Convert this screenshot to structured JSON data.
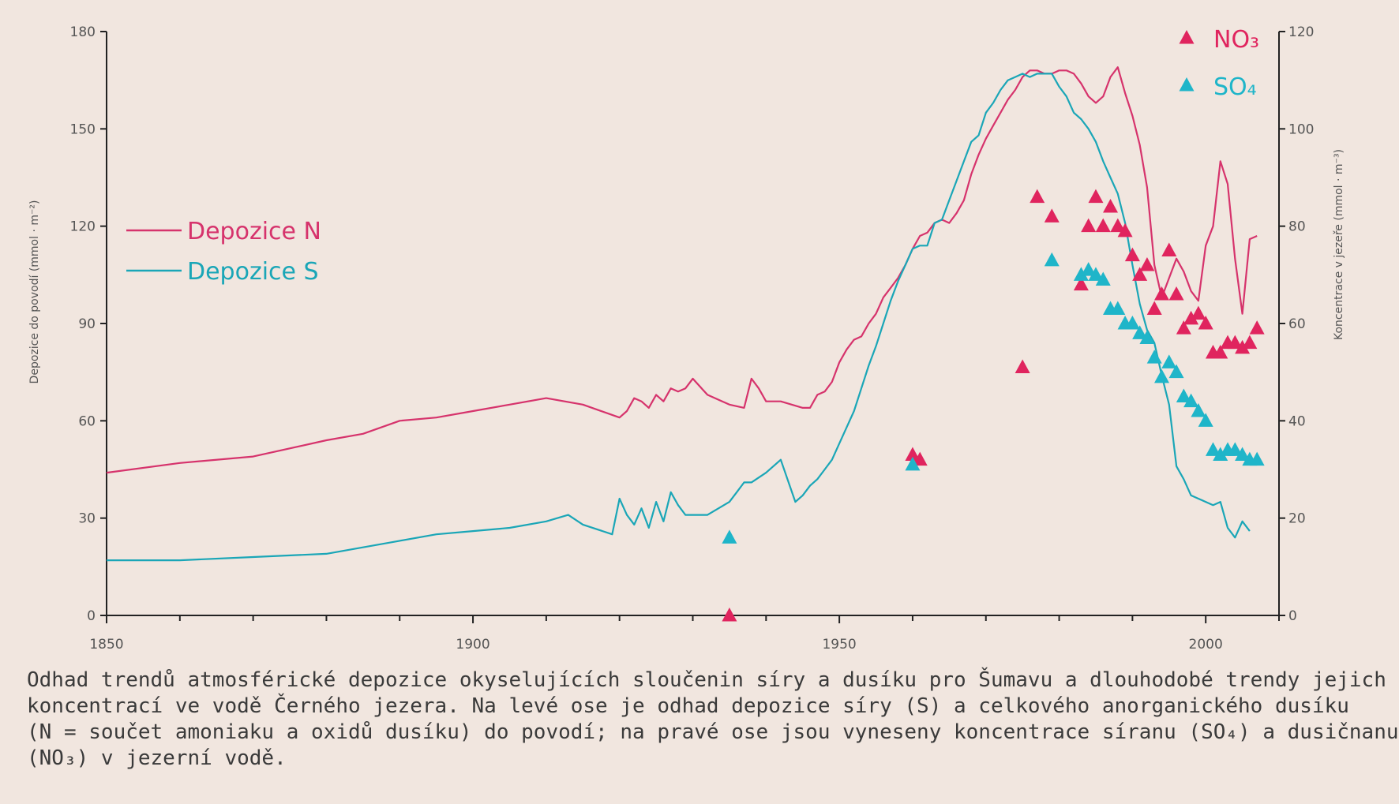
{
  "chart_data": {
    "type": "line",
    "xlim": [
      1850,
      2010
    ],
    "x_ticks": [
      1850,
      1900,
      1950,
      2000
    ],
    "y_left": {
      "label": "Depozice do povodí (mmol · m⁻²)",
      "lim": [
        0,
        180
      ],
      "ticks": [
        0,
        30,
        60,
        90,
        120,
        150,
        180
      ]
    },
    "y_right": {
      "label": "Koncentrace v jezeře (mmol · m⁻³)",
      "lim": [
        0,
        120
      ],
      "ticks": [
        0,
        20,
        40,
        60,
        80,
        100,
        120
      ]
    },
    "legend_lines": [
      {
        "name": "Depozice N",
        "color": "#d6336c"
      },
      {
        "name": "Depozice S",
        "color": "#1aa6b7"
      }
    ],
    "legend_markers": [
      {
        "name": "NO₃",
        "color": "#e0245e"
      },
      {
        "name": "SO₄",
        "color": "#1fb5c9"
      }
    ],
    "series": [
      {
        "name": "Depozice N",
        "axis": "left",
        "color": "#d6336c",
        "x": [
          1850,
          1860,
          1870,
          1880,
          1885,
          1890,
          1895,
          1900,
          1905,
          1910,
          1915,
          1920,
          1921,
          1922,
          1923,
          1924,
          1925,
          1926,
          1927,
          1928,
          1929,
          1930,
          1932,
          1935,
          1937,
          1938,
          1939,
          1940,
          1942,
          1945,
          1946,
          1947,
          1948,
          1949,
          1950,
          1951,
          1952,
          1953,
          1954,
          1955,
          1956,
          1957,
          1958,
          1959,
          1960,
          1961,
          1962,
          1963,
          1964,
          1965,
          1966,
          1967,
          1968,
          1969,
          1970,
          1971,
          1972,
          1973,
          1974,
          1975,
          1976,
          1977,
          1978,
          1979,
          1980,
          1981,
          1982,
          1983,
          1984,
          1985,
          1986,
          1987,
          1988,
          1989,
          1990,
          1991,
          1992,
          1993,
          1994,
          1995,
          1996,
          1997,
          1998,
          1999,
          2000,
          2001,
          2002,
          2003,
          2004,
          2005,
          2006,
          2007
        ],
        "y": [
          44,
          47,
          49,
          54,
          56,
          60,
          61,
          63,
          65,
          67,
          65,
          61,
          63,
          67,
          66,
          64,
          68,
          66,
          70,
          69,
          70,
          73,
          68,
          65,
          64,
          73,
          70,
          66,
          66,
          64,
          64,
          68,
          69,
          72,
          78,
          82,
          85,
          86,
          90,
          93,
          98,
          101,
          104,
          108,
          113,
          117,
          118,
          121,
          122,
          121,
          124,
          128,
          136,
          142,
          147,
          151,
          155,
          159,
          162,
          166,
          168,
          168,
          167,
          167,
          168,
          168,
          167,
          164,
          160,
          158,
          160,
          166,
          169,
          161,
          154,
          145,
          132,
          108,
          98,
          104,
          110,
          106,
          100,
          97,
          114,
          120,
          140,
          133,
          110,
          93,
          116,
          117
        ]
      },
      {
        "name": "Depozice S",
        "axis": "left",
        "color": "#1aa6b7",
        "x": [
          1850,
          1860,
          1870,
          1880,
          1885,
          1890,
          1895,
          1900,
          1905,
          1910,
          1913,
          1915,
          1919,
          1920,
          1921,
          1922,
          1923,
          1924,
          1925,
          1926,
          1927,
          1928,
          1929,
          1930,
          1932,
          1935,
          1936,
          1937,
          1938,
          1940,
          1942,
          1944,
          1945,
          1946,
          1947,
          1948,
          1949,
          1950,
          1951,
          1952,
          1953,
          1954,
          1955,
          1956,
          1957,
          1958,
          1959,
          1960,
          1961,
          1962,
          1963,
          1964,
          1965,
          1966,
          1967,
          1968,
          1969,
          1970,
          1971,
          1972,
          1973,
          1974,
          1975,
          1976,
          1977,
          1978,
          1979,
          1980,
          1981,
          1982,
          1983,
          1984,
          1985,
          1986,
          1987,
          1988,
          1989,
          1990,
          1991,
          1992,
          1993,
          1994,
          1995,
          1996,
          1997,
          1998,
          1999,
          2000,
          2001,
          2002,
          2003,
          2004,
          2005,
          2006
        ],
        "y": [
          17,
          17,
          18,
          19,
          21,
          23,
          25,
          26,
          27,
          29,
          31,
          28,
          25,
          36,
          31,
          28,
          33,
          27,
          35,
          29,
          38,
          34,
          31,
          31,
          31,
          35,
          38,
          41,
          41,
          44,
          48,
          35,
          37,
          40,
          42,
          45,
          48,
          53,
          58,
          63,
          70,
          77,
          83,
          90,
          97,
          103,
          108,
          113,
          114,
          114,
          121,
          122,
          128,
          134,
          140,
          146,
          148,
          155,
          158,
          162,
          165,
          166,
          167,
          166,
          167,
          167,
          167,
          163,
          160,
          155,
          153,
          150,
          146,
          140,
          135,
          130,
          121,
          108,
          96,
          88,
          84,
          74,
          65,
          46,
          42,
          37,
          36,
          35,
          34,
          35,
          27,
          24,
          29,
          26
        ]
      }
    ],
    "markers": [
      {
        "name": "NO₃",
        "axis": "right",
        "color": "#e0245e",
        "x": [
          1935,
          1960,
          1961,
          1975,
          1977,
          1979,
          1983,
          1984,
          1985,
          1986,
          1987,
          1988,
          1989,
          1990,
          1991,
          1992,
          1993,
          1994,
          1995,
          1996,
          1997,
          1998,
          1999,
          2000,
          2001,
          2002,
          2003,
          2004,
          2005,
          2006,
          2007
        ],
        "y": [
          0,
          33,
          32,
          51,
          86,
          82,
          68,
          80,
          86,
          80,
          84,
          80,
          79,
          74,
          70,
          72,
          63,
          66,
          75,
          66,
          59,
          61,
          62,
          60,
          54,
          54,
          56,
          56,
          55,
          56,
          59
        ]
      },
      {
        "name": "SO₄",
        "axis": "right",
        "color": "#1fb5c9",
        "x": [
          1935,
          1960,
          1979,
          1983,
          1984,
          1985,
          1986,
          1987,
          1988,
          1989,
          1990,
          1991,
          1992,
          1993,
          1994,
          1995,
          1996,
          1997,
          1998,
          1999,
          2000,
          2001,
          2002,
          2003,
          2004,
          2005,
          2006,
          2007
        ],
        "y": [
          16,
          31,
          73,
          70,
          71,
          70,
          69,
          63,
          63,
          60,
          60,
          58,
          57,
          53,
          49,
          52,
          50,
          45,
          44,
          42,
          40,
          34,
          33,
          34,
          34,
          33,
          32,
          32
        ]
      }
    ]
  },
  "caption": {
    "line1": "Odhad trendů atmosférické depozice okyselujících sloučenin síry a dusíku pro Šumavu a dlouhodobé trendy jejich",
    "line2": "koncentrací ve vodě Černého jezera. Na levé ose je odhad depozice síry (S) a celkového anorganického dusíku",
    "line3": "(N = součet amoniaku a oxidů dusíku) do povodí; na pravé ose jsou vyneseny koncentrace síranu (SO₄) a dusičnanu",
    "line4": "(NO₃) v jezerní vodě."
  }
}
